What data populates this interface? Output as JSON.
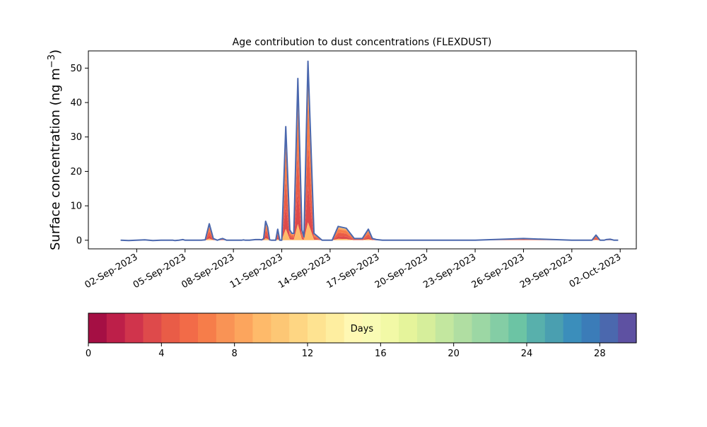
{
  "chart_data": [
    {
      "type": "area",
      "title": "Age contribution to dust concentrations (FLEXDUST)",
      "ylabel_main": "Surface concentration (ng m",
      "ylabel_sup": "−3",
      "ylabel_close": ")",
      "xlabel": "",
      "ylim": [
        -2.5,
        55
      ],
      "xlim": [
        "2023-08-30",
        "2023-10-03"
      ],
      "yticks": [
        "0",
        "10",
        "20",
        "30",
        "40",
        "50"
      ],
      "xticks": [
        "02-Sep-2023",
        "05-Sep-2023",
        "08-Sep-2023",
        "11-Sep-2023",
        "14-Sep-2023",
        "17-Sep-2023",
        "20-Sep-2023",
        "23-Sep-2023",
        "26-Sep-2023",
        "29-Sep-2023",
        "02-Oct-2023"
      ],
      "grid": false,
      "series": [
        {
          "x": [
            "2023-09-01T00:00",
            "2023-09-01T12:00",
            "2023-09-02T00:00",
            "2023-09-02T12:00",
            "2023-09-03T00:00",
            "2023-09-03T12:00",
            "2023-09-04T00:00",
            "2023-09-04T06:00",
            "2023-09-04T09:00",
            "2023-09-04T15:00",
            "2023-09-04T21:00",
            "2023-09-05T00:00",
            "2023-09-05T09:00",
            "2023-09-05T18:00",
            "2023-09-06T00:00",
            "2023-09-06T06:00",
            "2023-09-06T12:00",
            "2023-09-06T18:00",
            "2023-09-07T00:00",
            "2023-09-07T04:00",
            "2023-09-07T08:00",
            "2023-09-07T14:00",
            "2023-09-07T21:00",
            "2023-09-08T06:00",
            "2023-09-08T12:00",
            "2023-09-08T15:00",
            "2023-09-08T18:00",
            "2023-09-09T00:00",
            "2023-09-09T09:00",
            "2023-09-09T12:00",
            "2023-09-09T15:00",
            "2023-09-09T18:00",
            "2023-09-09T21:00",
            "2023-09-10T00:00",
            "2023-09-10T03:00",
            "2023-09-10T06:00",
            "2023-09-10T09:00",
            "2023-09-10T12:00",
            "2023-09-10T15:00",
            "2023-09-10T18:00",
            "2023-09-10T21:00",
            "2023-09-11T00:00",
            "2023-09-11T06:00",
            "2023-09-11T12:00",
            "2023-09-11T15:00",
            "2023-09-11T18:00",
            "2023-09-12T00:00",
            "2023-09-12T06:00",
            "2023-09-12T09:00",
            "2023-09-12T15:00",
            "2023-09-13T00:00",
            "2023-09-13T12:00",
            "2023-09-13T18:00",
            "2023-09-14T03:00",
            "2023-09-14T12:00",
            "2023-09-15T00:00",
            "2023-09-15T12:00",
            "2023-09-16T00:00",
            "2023-09-16T09:00",
            "2023-09-16T15:00",
            "2023-09-16T21:00",
            "2023-09-17T06:00",
            "2023-09-20T00:00",
            "2023-09-23T00:00",
            "2023-09-26T00:00",
            "2023-09-29T00:00",
            "2023-09-29T18:00",
            "2023-09-30T06:00",
            "2023-09-30T12:00",
            "2023-09-30T18:00",
            "2023-10-01T00:00",
            "2023-10-01T03:00",
            "2023-10-01T09:00",
            "2023-10-01T15:00",
            "2023-10-01T18:00",
            "2023-10-01T21:00"
          ],
          "y": [
            0,
            -0.1,
            0,
            0.1,
            -0.1,
            0,
            0,
            0,
            -0.1,
            0,
            0.2,
            0,
            0,
            0,
            0,
            0.1,
            4.8,
            0.5,
            0,
            0.3,
            0.5,
            0,
            0,
            0,
            0,
            0.1,
            0,
            0,
            0.2,
            0.2,
            0.2,
            0.1,
            0.5,
            5.5,
            3.8,
            0.1,
            0,
            0,
            0,
            3.2,
            0,
            0,
            33,
            3,
            2,
            2,
            47,
            3,
            1,
            52,
            2,
            0,
            0,
            0,
            4,
            3.5,
            0.5,
            0.5,
            3.2,
            0.5,
            0.2,
            0,
            0,
            0,
            0.5,
            0,
            0,
            0,
            1.5,
            0,
            0,
            0.2,
            0.3,
            0,
            0,
            0
          ]
        }
      ],
      "colorbar": {
        "label": "Days",
        "min": 0,
        "max": 30,
        "ticks": [
          "0",
          "4",
          "8",
          "12",
          "16",
          "20",
          "24",
          "28"
        ],
        "colors": [
          "#a50f44",
          "#bd1f49",
          "#d0344c",
          "#de4a4b",
          "#e95c47",
          "#f26b48",
          "#f67d4a",
          "#f99355",
          "#fca55d",
          "#feba6a",
          "#fdc775",
          "#fed683",
          "#fee391",
          "#feeea0",
          "#fff8b3",
          "#f9fbb4",
          "#f2f9a6",
          "#e5f49b",
          "#d6ee9b",
          "#c3e79f",
          "#b0dea2",
          "#9cd7a4",
          "#84cda5",
          "#6cc4a4",
          "#58b0ac",
          "#4a9fb0",
          "#3b8ebb",
          "#3b7cb8",
          "#4b68ae",
          "#5e51a2"
        ]
      }
    }
  ]
}
